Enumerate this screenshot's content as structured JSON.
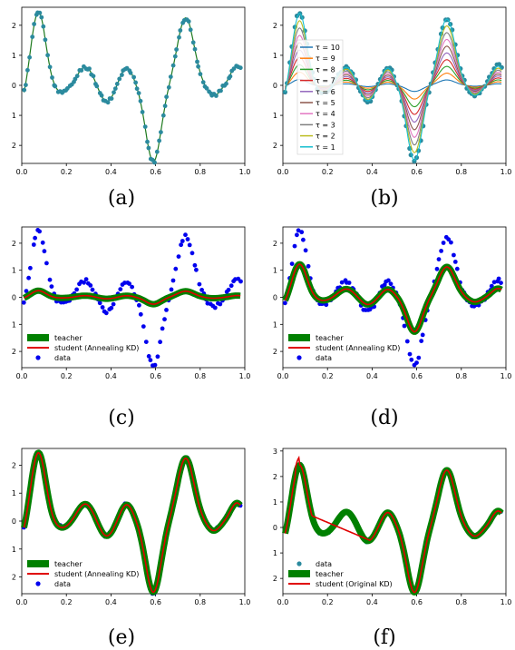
{
  "captions": [
    "(a)",
    "(b)",
    "(c)",
    "(d)",
    "(e)",
    "(f)"
  ],
  "chart_data": [
    {
      "panel": "a",
      "type": "scatter",
      "xlim": [
        0,
        1
      ],
      "ylim": [
        -2.6,
        2.6
      ],
      "xticks": [
        0.0,
        0.2,
        0.4,
        0.6,
        0.8,
        1.0
      ],
      "xtick_labels": [
        "0.0",
        "0.2",
        "0.4",
        "0.6",
        "0.8",
        "1.0"
      ],
      "yticks": [
        2,
        1,
        0,
        -1,
        -2
      ],
      "ytick_labels": [
        "2",
        "1",
        "0",
        "1",
        "2"
      ],
      "series": [
        {
          "role": "data",
          "marker": "dot",
          "color": "#2b8a9e"
        },
        {
          "role": "fit",
          "marker": "line",
          "color": "#1e7a1e"
        }
      ]
    },
    {
      "panel": "b",
      "type": "line",
      "xlim": [
        0,
        1
      ],
      "ylim": [
        -2.6,
        2.6
      ],
      "xticks": [
        0.0,
        0.2,
        0.4,
        0.6,
        0.8,
        1.0
      ],
      "xtick_labels": [
        "0.0",
        "0.2",
        "0.4",
        "0.6",
        "0.8",
        "1.0"
      ],
      "yticks": [
        2,
        1,
        0,
        -1,
        -2
      ],
      "ytick_labels": [
        "2",
        "1",
        "0",
        "1",
        "2"
      ],
      "legend_position": "left",
      "series": [
        {
          "name": "τ = 10",
          "color": "#1f77b4",
          "scale": 0.08
        },
        {
          "name": "τ = 9",
          "color": "#ff7f0e",
          "scale": 0.18
        },
        {
          "name": "τ = 8",
          "color": "#2ca02c",
          "scale": 0.28
        },
        {
          "name": "τ = 7",
          "color": "#d62728",
          "scale": 0.38
        },
        {
          "name": "τ = 6",
          "color": "#9467bd",
          "scale": 0.48
        },
        {
          "name": "τ = 5",
          "color": "#8c564b",
          "scale": 0.58
        },
        {
          "name": "τ = 4",
          "color": "#e377c2",
          "scale": 0.68
        },
        {
          "name": "τ = 3",
          "color": "#7f7f7f",
          "scale": 0.78
        },
        {
          "name": "τ = 2",
          "color": "#bcbd22",
          "scale": 0.88
        },
        {
          "name": "τ = 1",
          "color": "#17becf",
          "scale": 0.98
        }
      ]
    },
    {
      "panel": "c",
      "type": "line",
      "xlim": [
        0,
        1
      ],
      "ylim": [
        -2.6,
        2.6
      ],
      "xticks": [
        0.0,
        0.2,
        0.4,
        0.6,
        0.8,
        1.0
      ],
      "xtick_labels": [
        "0.0",
        "0.2",
        "0.4",
        "0.6",
        "0.8",
        "1.0"
      ],
      "yticks": [
        2,
        1,
        0,
        -1,
        -2
      ],
      "ytick_labels": [
        "2",
        "1",
        "0",
        "1",
        "2"
      ],
      "legend_position": "lower-left",
      "series": [
        {
          "name": "teacher",
          "color": "#008000",
          "scale": 0.1
        },
        {
          "name": "student (Annealing KD)",
          "color": "#e00000",
          "scale": 0.1
        },
        {
          "name": "data",
          "color": "#0000ee"
        }
      ]
    },
    {
      "panel": "d",
      "type": "line",
      "xlim": [
        0,
        1
      ],
      "ylim": [
        -2.6,
        2.6
      ],
      "xticks": [
        0.0,
        0.2,
        0.4,
        0.6,
        0.8,
        1.0
      ],
      "xtick_labels": [
        "0.0",
        "0.2",
        "0.4",
        "0.6",
        "0.8",
        "1.0"
      ],
      "yticks": [
        2,
        1,
        0,
        -1,
        -2
      ],
      "ytick_labels": [
        "2",
        "1",
        "0",
        "1",
        "2"
      ],
      "legend_position": "lower-left",
      "series": [
        {
          "name": "teacher",
          "color": "#008000",
          "scale": 0.5
        },
        {
          "name": "student (Annealing KD)",
          "color": "#e00000",
          "scale": 0.5
        },
        {
          "name": "data",
          "color": "#0000ee"
        }
      ]
    },
    {
      "panel": "e",
      "type": "line",
      "xlim": [
        0,
        1
      ],
      "ylim": [
        -2.6,
        2.6
      ],
      "xticks": [
        0.0,
        0.2,
        0.4,
        0.6,
        0.8,
        1.0
      ],
      "xtick_labels": [
        "0.0",
        "0.2",
        "0.4",
        "0.6",
        "0.8",
        "1.0"
      ],
      "yticks": [
        2,
        1,
        0,
        -1,
        -2
      ],
      "ytick_labels": [
        "2",
        "1",
        "0",
        "1",
        "2"
      ],
      "legend_position": "lower-left",
      "series": [
        {
          "name": "teacher",
          "color": "#008000",
          "scale": 1.0
        },
        {
          "name": "student (Annealing KD)",
          "color": "#e00000",
          "scale": 1.0
        },
        {
          "name": "data",
          "color": "#0000ee"
        }
      ]
    },
    {
      "panel": "f",
      "type": "line",
      "xlim": [
        0,
        1
      ],
      "ylim": [
        -2.6,
        3.1
      ],
      "xticks": [
        0.0,
        0.2,
        0.4,
        0.6,
        0.8,
        1.0
      ],
      "xtick_labels": [
        "0.0",
        "0.2",
        "0.4",
        "0.6",
        "0.8",
        "1.0"
      ],
      "yticks": [
        3,
        2,
        1,
        0,
        -1,
        -2
      ],
      "ytick_labels": [
        "3",
        "2",
        "1",
        "0",
        "1",
        "2"
      ],
      "legend_position": "lower-left",
      "series": [
        {
          "name": "data",
          "color": "#2b8a9e"
        },
        {
          "name": "teacher",
          "color": "#008000",
          "scale": 1.0
        },
        {
          "name": "student (Original KD)",
          "color": "#e00000",
          "scale": 1.0
        }
      ]
    }
  ]
}
